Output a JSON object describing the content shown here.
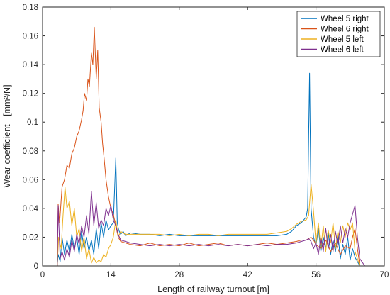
{
  "chart_data": {
    "type": "line",
    "title": "",
    "xlabel": "Length of railway turnout [m]",
    "ylabel_main": "Wear coefficient",
    "ylabel_unit": "[mm²/N]",
    "xlim": [
      0,
      70
    ],
    "ylim": [
      0,
      0.18
    ],
    "xticks": [
      0,
      14,
      28,
      42,
      56,
      70
    ],
    "yticks": [
      0,
      0.02,
      0.04,
      0.06,
      0.08,
      0.1,
      0.12,
      0.14,
      0.16,
      0.18
    ],
    "ytick_labels": [
      "0",
      "0.02",
      "0.04",
      "0.06",
      "0.08",
      "0.1",
      "0.12",
      "0.14",
      "0.16",
      "0.18"
    ],
    "grid": false,
    "legend_position": "top-right",
    "series": [
      {
        "name": "Wheel 5 right",
        "color": "#0072BD",
        "x": [
          0,
          3,
          3.2,
          3.6,
          4,
          4.5,
          5,
          5.5,
          6,
          6.5,
          7,
          7.5,
          8,
          8.5,
          9,
          9.5,
          10,
          10.5,
          11,
          11.5,
          12,
          12.5,
          13,
          13.5,
          14,
          14.5,
          15,
          15.3,
          15.6,
          16,
          16.5,
          17,
          18,
          20,
          22,
          24,
          26,
          28,
          30,
          32,
          34,
          36,
          38,
          40,
          42,
          44,
          46,
          48,
          50,
          51,
          52,
          53,
          53.5,
          54,
          54.3,
          54.5,
          54.7,
          55,
          55.5,
          56,
          56.5,
          57,
          57.5,
          58,
          58.5,
          59,
          59.5,
          60,
          60.5,
          61,
          61.5,
          62,
          62.5,
          63,
          63.5,
          64,
          64.5,
          65,
          66,
          67,
          68,
          69,
          70
        ],
        "y": [
          0,
          0,
          0.008,
          0.003,
          0.02,
          0.008,
          0.018,
          0.01,
          0.022,
          0.012,
          0.02,
          0.008,
          0.024,
          0.012,
          0.02,
          0.01,
          0.018,
          0.008,
          0.026,
          0.012,
          0.03,
          0.02,
          0.032,
          0.025,
          0.028,
          0.03,
          0.075,
          0.03,
          0.025,
          0.022,
          0.024,
          0.021,
          0.023,
          0.022,
          0.022,
          0.021,
          0.022,
          0.021,
          0.021,
          0.021,
          0.021,
          0.021,
          0.021,
          0.021,
          0.021,
          0.021,
          0.021,
          0.021,
          0.022,
          0.024,
          0.028,
          0.03,
          0.032,
          0.034,
          0.04,
          0.09,
          0.134,
          0.04,
          0.02,
          0.014,
          0.026,
          0.01,
          0.02,
          0.012,
          0.024,
          0.008,
          0.018,
          0.01,
          0.022,
          0.005,
          0.015,
          0.008,
          0.02,
          0.004,
          0.012,
          0.006,
          0.003,
          0,
          0,
          0,
          0,
          0,
          0
        ]
      },
      {
        "name": "Wheel 6 right",
        "color": "#D95319",
        "x": [
          0,
          3,
          3.2,
          3.5,
          4,
          4.5,
          5,
          5.5,
          6,
          6.5,
          7,
          7.5,
          8,
          8.3,
          8.6,
          9,
          9.3,
          9.6,
          10,
          10.3,
          10.6,
          11,
          11.3,
          11.6,
          12,
          12.3,
          12.6,
          13,
          13.5,
          14,
          14.5,
          15,
          15.5,
          16,
          17,
          18,
          20,
          22,
          24,
          26,
          28,
          30,
          32,
          34,
          36,
          38,
          40,
          42,
          44,
          46,
          48,
          50,
          52,
          53,
          54,
          54.5,
          55,
          55.5,
          56,
          57,
          58,
          59,
          60,
          61,
          62,
          63,
          63.5,
          64,
          64.5,
          65,
          66,
          68,
          70
        ],
        "y": [
          0,
          0,
          0.043,
          0.03,
          0.055,
          0.06,
          0.07,
          0.068,
          0.078,
          0.082,
          0.09,
          0.094,
          0.102,
          0.108,
          0.12,
          0.115,
          0.13,
          0.125,
          0.148,
          0.14,
          0.166,
          0.13,
          0.15,
          0.11,
          0.1,
          0.085,
          0.075,
          0.06,
          0.048,
          0.04,
          0.036,
          0.028,
          0.02,
          0.017,
          0.016,
          0.015,
          0.014,
          0.016,
          0.014,
          0.015,
          0.014,
          0.016,
          0.014,
          0.015,
          0.016,
          0.014,
          0.015,
          0.014,
          0.015,
          0.016,
          0.015,
          0.016,
          0.017,
          0.018,
          0.018,
          0.019,
          0.02,
          0.018,
          0.015,
          0.012,
          0.018,
          0.01,
          0.016,
          0.008,
          0.014,
          0.012,
          0.02,
          0.026,
          0.012,
          0,
          0,
          0,
          0
        ]
      },
      {
        "name": "Wheel 5 left",
        "color": "#EDB120",
        "x": [
          0,
          3,
          3.3,
          3.8,
          4.2,
          4.6,
          5,
          5.5,
          6,
          6.5,
          7,
          7.5,
          8,
          8.5,
          9,
          9.5,
          10,
          10.5,
          11,
          11.5,
          12,
          12.5,
          13,
          13.5,
          14,
          14.5,
          15,
          15.5,
          16,
          16.5,
          17,
          18,
          20,
          22,
          24,
          26,
          28,
          30,
          32,
          34,
          36,
          38,
          40,
          42,
          44,
          46,
          48,
          50,
          51,
          52,
          53,
          54,
          54.5,
          55,
          55.5,
          56,
          56.5,
          57,
          57.5,
          58,
          58.5,
          59,
          59.5,
          60,
          60.5,
          61,
          61.5,
          62,
          62.5,
          63,
          63.5,
          64,
          64.5,
          65,
          66,
          68,
          70
        ],
        "y": [
          0,
          0,
          0.02,
          0.012,
          0.035,
          0.055,
          0.04,
          0.045,
          0.028,
          0.04,
          0.02,
          0.026,
          0.01,
          0.02,
          0.005,
          0.012,
          0.002,
          0.006,
          0.002,
          0.004,
          0.003,
          0.008,
          0.006,
          0.012,
          0.015,
          0.02,
          0.032,
          0.02,
          0.024,
          0.023,
          0.022,
          0.022,
          0.022,
          0.022,
          0.022,
          0.021,
          0.022,
          0.021,
          0.022,
          0.022,
          0.021,
          0.022,
          0.022,
          0.022,
          0.022,
          0.022,
          0.023,
          0.024,
          0.026,
          0.029,
          0.031,
          0.032,
          0.035,
          0.057,
          0.038,
          0.015,
          0.03,
          0.012,
          0.028,
          0.01,
          0.025,
          0.016,
          0.03,
          0.012,
          0.024,
          0.016,
          0.028,
          0.02,
          0.03,
          0.025,
          0.03,
          0.01,
          0.005,
          0,
          0,
          0,
          0
        ]
      },
      {
        "name": "Wheel 6 left",
        "color": "#7E2F8E",
        "x": [
          0,
          3,
          3.2,
          3.6,
          4,
          4.5,
          5,
          5.5,
          6,
          6.5,
          7,
          7.5,
          8,
          8.5,
          9,
          9.5,
          10,
          10.5,
          11,
          11.5,
          12,
          12.5,
          13,
          13.5,
          14,
          14.5,
          15,
          15.5,
          16,
          17,
          18,
          20,
          22,
          24,
          26,
          28,
          30,
          32,
          34,
          36,
          38,
          40,
          42,
          44,
          46,
          48,
          50,
          52,
          53,
          54,
          54.5,
          55,
          55.5,
          56,
          56.5,
          57,
          57.5,
          58,
          58.5,
          59,
          59.5,
          60,
          60.5,
          61,
          61.5,
          62,
          62.5,
          63,
          63.5,
          64,
          64.5,
          65,
          66,
          68,
          70
        ],
        "y": [
          0,
          0,
          0.042,
          0.005,
          0.01,
          0.004,
          0.012,
          0.006,
          0.018,
          0.01,
          0.022,
          0.015,
          0.028,
          0.02,
          0.035,
          0.022,
          0.052,
          0.028,
          0.044,
          0.026,
          0.032,
          0.028,
          0.04,
          0.035,
          0.042,
          0.032,
          0.028,
          0.022,
          0.018,
          0.017,
          0.016,
          0.015,
          0.014,
          0.015,
          0.014,
          0.015,
          0.014,
          0.015,
          0.014,
          0.015,
          0.014,
          0.015,
          0.014,
          0.015,
          0.014,
          0.015,
          0.015,
          0.016,
          0.017,
          0.018,
          0.019,
          0.017,
          0.012,
          0.016,
          0.008,
          0.02,
          0.01,
          0.026,
          0.012,
          0.022,
          0.01,
          0.024,
          0.014,
          0.028,
          0.016,
          0.026,
          0.02,
          0.03,
          0.036,
          0.042,
          0.02,
          0.005,
          0,
          0,
          0
        ]
      }
    ]
  }
}
